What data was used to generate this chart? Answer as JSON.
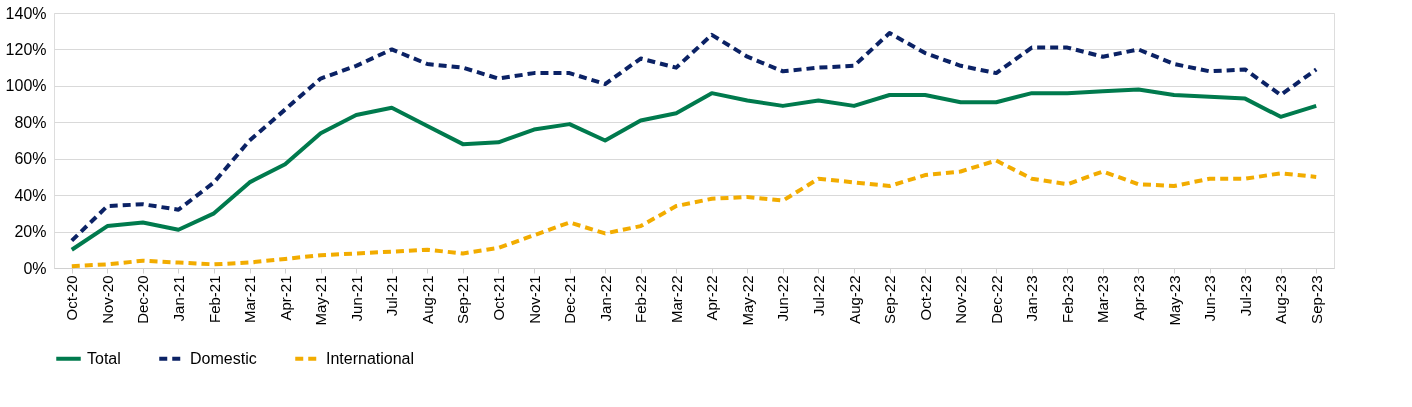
{
  "chart_data": {
    "type": "line",
    "categories": [
      "Oct-20",
      "Nov-20",
      "Dec-20",
      "Jan-21",
      "Feb-21",
      "Mar-21",
      "Apr-21",
      "May-21",
      "Jun-21",
      "Jul-21",
      "Aug-21",
      "Sep-21",
      "Oct-21",
      "Nov-21",
      "Dec-21",
      "Jan-22",
      "Feb-22",
      "Mar-22",
      "Apr-22",
      "May-22",
      "Jun-22",
      "Jul-22",
      "Aug-22",
      "Sep-22",
      "Oct-22",
      "Nov-22",
      "Dec-22",
      "Jan-23",
      "Feb-23",
      "Mar-23",
      "Apr-23",
      "May-23",
      "Jun-23",
      "Jul-23",
      "Aug-23",
      "Sep-23"
    ],
    "series": [
      {
        "name": "Total",
        "color": "#007a4d",
        "line_style": "solid",
        "values": [
          10,
          23,
          25,
          21,
          30,
          47,
          57,
          74,
          84,
          88,
          78,
          68,
          69,
          76,
          79,
          70,
          81,
          85,
          96,
          92,
          89,
          92,
          89,
          95,
          95,
          91,
          91,
          96,
          96,
          97,
          98,
          95,
          94,
          93,
          83,
          89
        ]
      },
      {
        "name": "Domestic",
        "color": "#0b2265",
        "line_style": "dashed",
        "values": [
          15,
          34,
          35,
          32,
          47,
          70,
          87,
          104,
          111,
          120,
          112,
          110,
          104,
          107,
          107,
          101,
          115,
          110,
          128,
          116,
          108,
          110,
          111,
          129,
          118,
          111,
          107,
          121,
          121,
          116,
          120,
          112,
          108,
          109,
          95,
          109
        ]
      },
      {
        "name": "International",
        "color": "#f2ac00",
        "line_style": "dashed",
        "values": [
          1,
          2,
          4,
          3,
          2,
          3,
          5,
          7,
          8,
          9,
          10,
          8,
          11,
          18,
          25,
          19,
          23,
          34,
          38,
          39,
          37,
          49,
          47,
          45,
          51,
          53,
          59,
          49,
          46,
          53,
          46,
          45,
          49,
          49,
          52,
          50
        ]
      }
    ],
    "ylim": [
      0,
      140
    ],
    "yticks": [
      {
        "value": 0,
        "label": "0%"
      },
      {
        "value": 20,
        "label": "20%"
      },
      {
        "value": 40,
        "label": "40%"
      },
      {
        "value": 60,
        "label": "60%"
      },
      {
        "value": 80,
        "label": "80%"
      },
      {
        "value": 100,
        "label": "100%"
      },
      {
        "value": 120,
        "label": "120%"
      },
      {
        "value": 140,
        "label": "140%"
      }
    ],
    "grid": "y",
    "legend": "bottom",
    "marker": "none"
  }
}
